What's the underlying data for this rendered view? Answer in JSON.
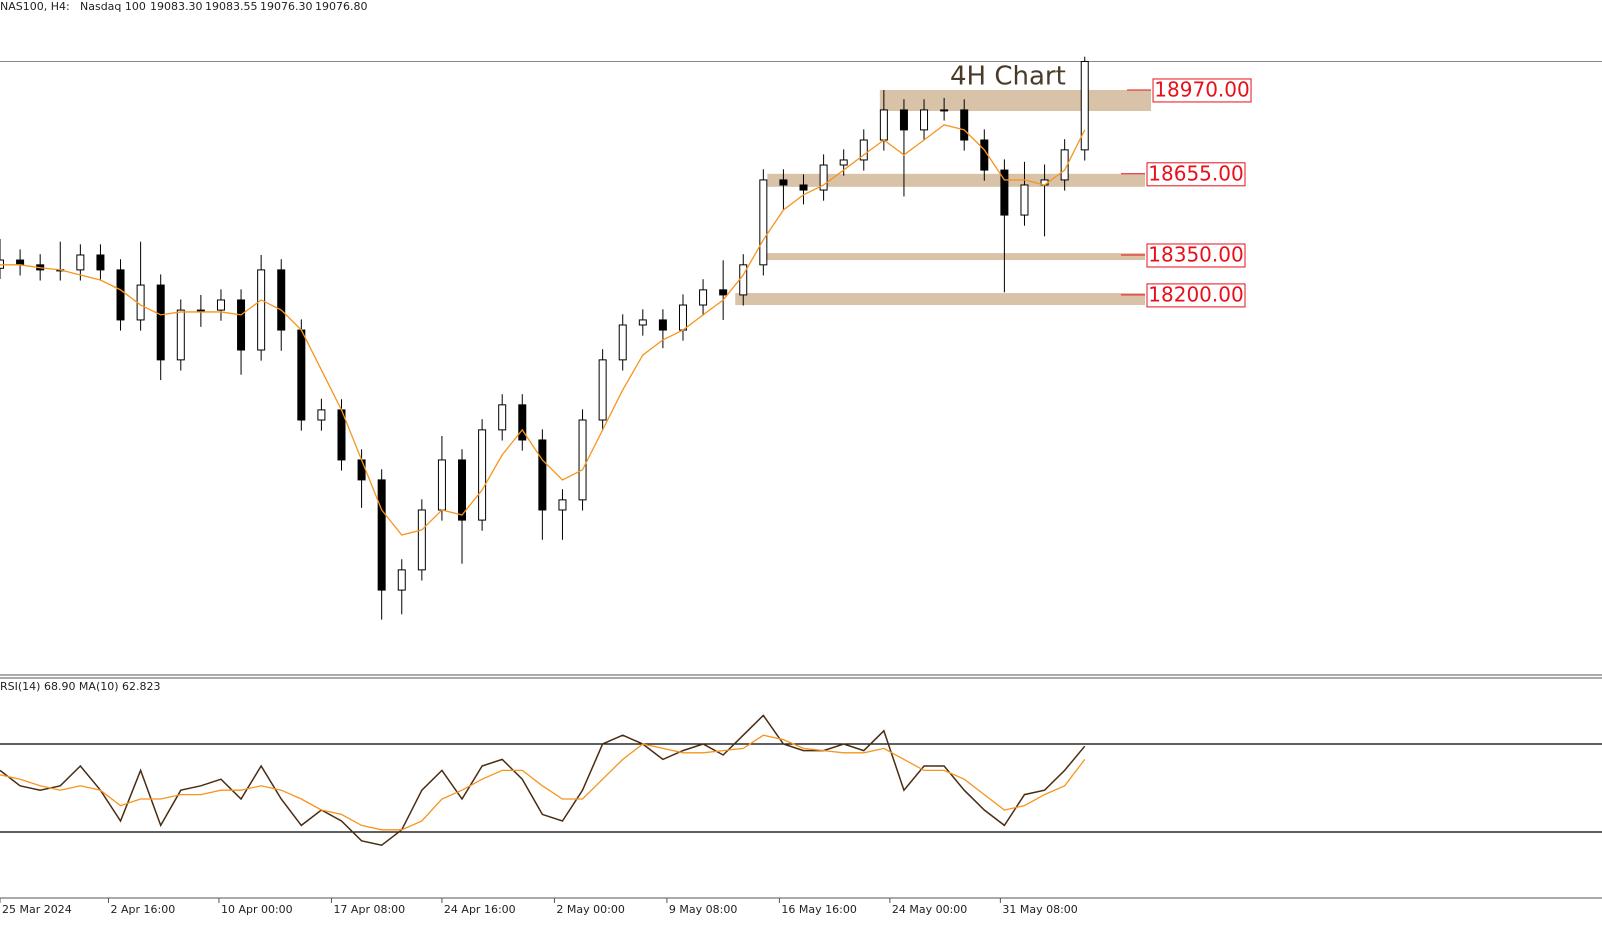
{
  "chart_data": [
    {
      "type": "candlestick",
      "symbol": "NAS100, H4:",
      "name": "Nasdaq 100",
      "quote": [
        {
          "value": 19083.3,
          "label": "19083.30"
        },
        {
          "value": 19083.55,
          "label": "19083.55"
        },
        {
          "value": 19076.3,
          "label": "19076.30"
        },
        {
          "value": 19076.8,
          "label": "19076.80"
        }
      ],
      "annotation": "4H Chart",
      "xlim": [
        0,
        79.75
      ],
      "ylim": [
        16772,
        19308
      ],
      "xticks": [
        {
          "value": 0,
          "label": "25 Mar 2024"
        },
        {
          "value": 5.4,
          "label": "2 Apr 16:00"
        },
        {
          "value": 10.9,
          "label": "10 Apr 00:00"
        },
        {
          "value": 16.5,
          "label": "17 Apr 08:00"
        },
        {
          "value": 22,
          "label": "24 Apr 16:00"
        },
        {
          "value": 27.6,
          "label": "2 May 00:00"
        },
        {
          "value": 33.2,
          "label": "9 May 08:00"
        },
        {
          "value": 38.8,
          "label": "16 May 16:00"
        },
        {
          "value": 44.3,
          "label": "24 May 00:00"
        },
        {
          "value": 49.8,
          "label": "31 May 08:00"
        }
      ],
      "open": [
        18300,
        18331,
        18313,
        18294,
        18294,
        18350,
        18294,
        18106,
        18237,
        17956,
        18143,
        18143,
        18181,
        17993,
        18294,
        18068,
        17730,
        17768,
        17580,
        17505,
        17091,
        17167,
        17392,
        17580,
        17354,
        17693,
        17787,
        17655,
        17392,
        17430,
        17730,
        17956,
        18087,
        18106,
        18068,
        18162,
        18219,
        18200,
        18313,
        18632,
        18613,
        18594,
        18688,
        18707,
        18782,
        18895,
        18820,
        18895,
        18895,
        18782,
        18669,
        18500,
        18613,
        18632,
        18745
      ],
      "high": [
        18410,
        18371,
        18353,
        18400,
        18390,
        18390,
        18334,
        18400,
        18277,
        18183,
        18200,
        18221,
        18221,
        18350,
        18334,
        18108,
        17810,
        17808,
        17620,
        17545,
        17207,
        17432,
        17670,
        17620,
        17733,
        17827,
        17827,
        17695,
        17470,
        17770,
        17996,
        18127,
        18146,
        18146,
        18202,
        18259,
        18330,
        18353,
        18672,
        18672,
        18653,
        18728,
        18747,
        18822,
        18970,
        18935,
        18935,
        18940,
        18935,
        18822,
        18709,
        18700,
        18690,
        18785,
        19095
      ],
      "low": [
        18260,
        18273,
        18254,
        18254,
        18254,
        18254,
        18066,
        18066,
        17880,
        17916,
        18080,
        18103,
        17900,
        17953,
        17990,
        17690,
        17690,
        17540,
        17400,
        16980,
        17000,
        17127,
        17352,
        17190,
        17314,
        17653,
        17615,
        17280,
        17280,
        17390,
        17690,
        17916,
        18047,
        18000,
        18028,
        18122,
        18106,
        18160,
        18273,
        18520,
        18540,
        18554,
        18648,
        18667,
        18742,
        18570,
        18780,
        18855,
        18742,
        18629,
        18210,
        18460,
        18420,
        18592,
        18705
      ],
      "close": [
        18331,
        18313,
        18294,
        18294,
        18350,
        18294,
        18106,
        18237,
        17956,
        18143,
        18143,
        18181,
        17993,
        18294,
        18068,
        17730,
        17768,
        17580,
        17505,
        17091,
        17167,
        17392,
        17580,
        17354,
        17693,
        17787,
        17655,
        17392,
        17430,
        17730,
        17956,
        18087,
        18106,
        18068,
        18162,
        18219,
        18200,
        18313,
        18632,
        18613,
        18594,
        18688,
        18707,
        18782,
        18895,
        18820,
        18895,
        18895,
        18782,
        18669,
        18500,
        18613,
        18632,
        18745,
        19077
      ],
      "ma": {
        "color": "#f7941d",
        "values": [
          18313,
          18313,
          18302,
          18294,
          18275,
          18256,
          18219,
          18162,
          18125,
          18136,
          18136,
          18136,
          18125,
          18181,
          18143,
          18068,
          17918,
          17768,
          17580,
          17392,
          17298,
          17317,
          17392,
          17373,
          17467,
          17599,
          17693,
          17580,
          17505,
          17543,
          17693,
          17843,
          17974,
          18031,
          18068,
          18125,
          18181,
          18275,
          18407,
          18519,
          18576,
          18613,
          18669,
          18726,
          18782,
          18726,
          18782,
          18839,
          18820,
          18745,
          18632,
          18632,
          18613,
          18669,
          18820
        ]
      },
      "levels": [
        {
          "value": 18970,
          "label": "18970.00"
        },
        {
          "value": 18655,
          "label": "18655.00"
        },
        {
          "value": 18350,
          "label": "18350.00"
        },
        {
          "value": 18200,
          "label": "18200.00"
        }
      ],
      "zones": [
        {
          "from": 43.8,
          "to": 57.3,
          "low": 18891,
          "high": 18970
        },
        {
          "from": 38.2,
          "to": 57,
          "low": 18606,
          "high": 18655
        },
        {
          "from": 37.9,
          "to": 57,
          "low": 18331,
          "high": 18357
        },
        {
          "from": 36.6,
          "to": 57,
          "low": 18162,
          "high": 18207
        }
      ],
      "zone_color": "#d9c3a8",
      "level_color": "#e8101a",
      "up_color": "#ffffff",
      "down_color": "#000000"
    },
    {
      "type": "line",
      "title": "RSI(14) 68.90 MA(10) 62.823",
      "xlim": [
        0,
        79.75
      ],
      "ylim": [
        0,
        100
      ],
      "levels": [
        70,
        30
      ],
      "color": "#4a2c12",
      "values": [
        58,
        51,
        49,
        51,
        60,
        49,
        35,
        58,
        33,
        49,
        51,
        54,
        45,
        60,
        45,
        33,
        40,
        35,
        26,
        24,
        31,
        49,
        58,
        45,
        60,
        63,
        54,
        38,
        35,
        49,
        70,
        74,
        70,
        63,
        67,
        70,
        65,
        74,
        83,
        70,
        67,
        67,
        70,
        67,
        76,
        49,
        60,
        60,
        49,
        40,
        33,
        47,
        49,
        58,
        69
      ],
      "ma": {
        "color": "#f7941d",
        "values": [
          56,
          54,
          51,
          49,
          51,
          49,
          42,
          45,
          45,
          47,
          47,
          49,
          49,
          51,
          49,
          45,
          40,
          38,
          33,
          31,
          31,
          35,
          45,
          49,
          54,
          58,
          58,
          51,
          45,
          45,
          54,
          63,
          70,
          68,
          66,
          66,
          67,
          68,
          74,
          72,
          68,
          67,
          66,
          66,
          68,
          63,
          58,
          58,
          54,
          47,
          40,
          42,
          47,
          51,
          63
        ]
      }
    }
  ]
}
